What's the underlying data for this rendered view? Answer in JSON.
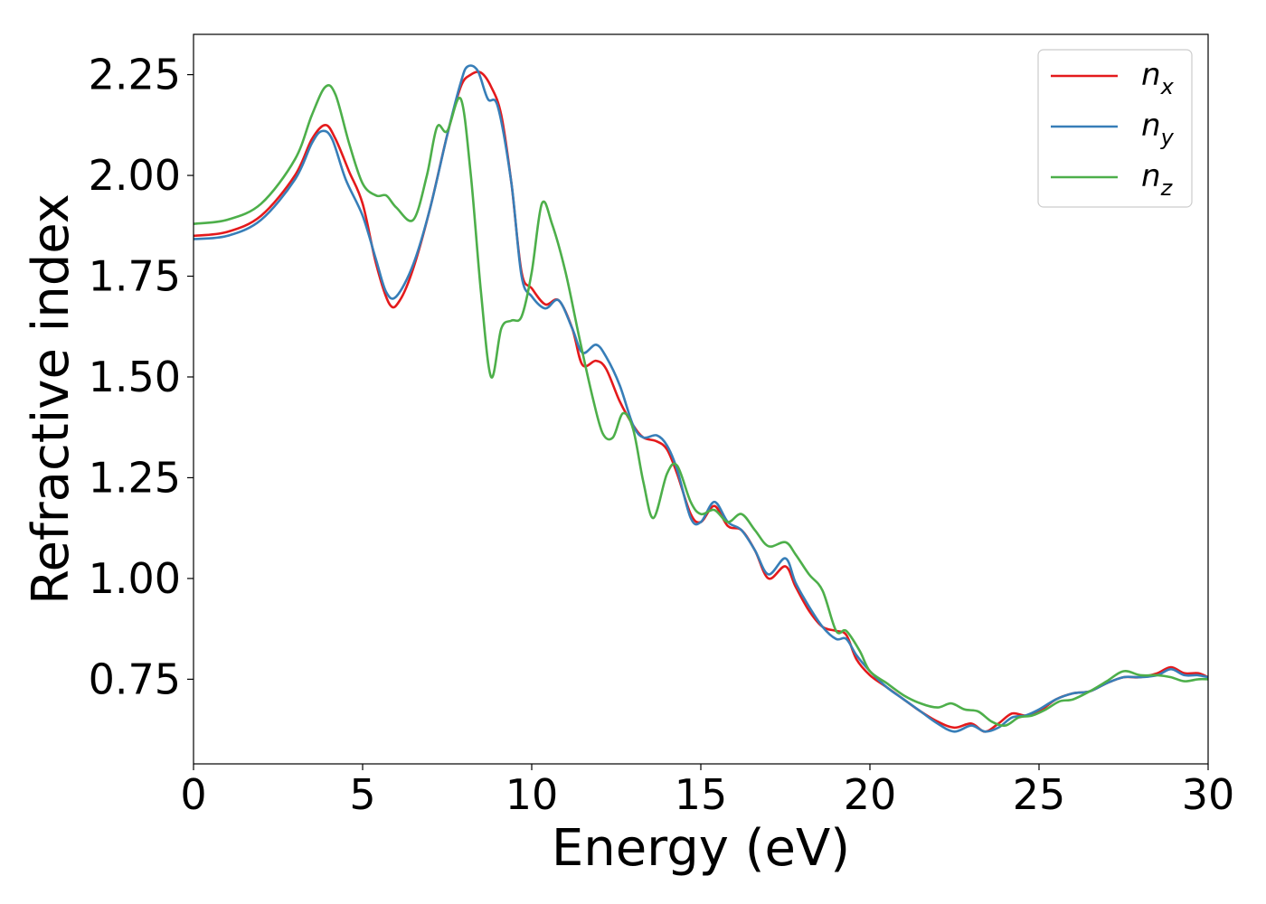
{
  "chart_data": {
    "type": "line",
    "xlabel": "Energy (eV)",
    "ylabel": "Refractive index",
    "xlim": [
      0,
      30
    ],
    "ylim": [
      0.54,
      2.35
    ],
    "xticks": [
      "0",
      "5",
      "10",
      "15",
      "20",
      "25",
      "30"
    ],
    "yticks": [
      "0.75",
      "1.00",
      "1.25",
      "1.50",
      "1.75",
      "2.00",
      "2.25"
    ],
    "grid": false,
    "legend_position": "top-right",
    "series": [
      {
        "name": "n_x",
        "base": "n",
        "sub": "x",
        "color": "#e41a1c",
        "points": [
          [
            0,
            1.85
          ],
          [
            1,
            1.86
          ],
          [
            2,
            1.9
          ],
          [
            3,
            2.0
          ],
          [
            3.5,
            2.09
          ],
          [
            3.9,
            2.125
          ],
          [
            4.2,
            2.09
          ],
          [
            4.6,
            2.01
          ],
          [
            5.0,
            1.93
          ],
          [
            5.4,
            1.78
          ],
          [
            5.8,
            1.68
          ],
          [
            6.1,
            1.69
          ],
          [
            6.5,
            1.77
          ],
          [
            7.0,
            1.92
          ],
          [
            7.5,
            2.1
          ],
          [
            7.9,
            2.22
          ],
          [
            8.2,
            2.25
          ],
          [
            8.5,
            2.255
          ],
          [
            8.8,
            2.22
          ],
          [
            9.1,
            2.15
          ],
          [
            9.4,
            1.98
          ],
          [
            9.7,
            1.76
          ],
          [
            10.0,
            1.72
          ],
          [
            10.4,
            1.68
          ],
          [
            10.8,
            1.69
          ],
          [
            11.2,
            1.62
          ],
          [
            11.5,
            1.53
          ],
          [
            11.9,
            1.54
          ],
          [
            12.2,
            1.52
          ],
          [
            12.6,
            1.44
          ],
          [
            13.0,
            1.38
          ],
          [
            13.3,
            1.35
          ],
          [
            13.7,
            1.34
          ],
          [
            14.0,
            1.32
          ],
          [
            14.3,
            1.26
          ],
          [
            14.7,
            1.16
          ],
          [
            15.0,
            1.14
          ],
          [
            15.4,
            1.18
          ],
          [
            15.8,
            1.13
          ],
          [
            16.2,
            1.12
          ],
          [
            16.6,
            1.07
          ],
          [
            17.0,
            1.0
          ],
          [
            17.5,
            1.03
          ],
          [
            17.8,
            0.98
          ],
          [
            18.2,
            0.92
          ],
          [
            18.6,
            0.88
          ],
          [
            19.0,
            0.87
          ],
          [
            19.3,
            0.86
          ],
          [
            19.6,
            0.8
          ],
          [
            20.0,
            0.76
          ],
          [
            20.5,
            0.73
          ],
          [
            21.0,
            0.7
          ],
          [
            21.5,
            0.67
          ],
          [
            22.0,
            0.645
          ],
          [
            22.5,
            0.63
          ],
          [
            23.0,
            0.64
          ],
          [
            23.4,
            0.62
          ],
          [
            23.8,
            0.64
          ],
          [
            24.2,
            0.665
          ],
          [
            24.6,
            0.66
          ],
          [
            25.0,
            0.67
          ],
          [
            25.5,
            0.7
          ],
          [
            26.0,
            0.715
          ],
          [
            26.5,
            0.72
          ],
          [
            27.0,
            0.74
          ],
          [
            27.5,
            0.755
          ],
          [
            28.0,
            0.755
          ],
          [
            28.5,
            0.765
          ],
          [
            28.9,
            0.78
          ],
          [
            29.3,
            0.765
          ],
          [
            29.7,
            0.765
          ],
          [
            30,
            0.755
          ]
        ]
      },
      {
        "name": "n_y",
        "base": "n",
        "sub": "y",
        "color": "#377eb8",
        "points": [
          [
            0,
            1.842
          ],
          [
            1,
            1.85
          ],
          [
            2,
            1.89
          ],
          [
            3,
            1.99
          ],
          [
            3.5,
            2.08
          ],
          [
            3.8,
            2.11
          ],
          [
            4.1,
            2.09
          ],
          [
            4.5,
            1.99
          ],
          [
            5.0,
            1.9
          ],
          [
            5.4,
            1.79
          ],
          [
            5.7,
            1.71
          ],
          [
            6.0,
            1.7
          ],
          [
            6.5,
            1.78
          ],
          [
            7.0,
            1.92
          ],
          [
            7.5,
            2.1
          ],
          [
            7.9,
            2.23
          ],
          [
            8.1,
            2.27
          ],
          [
            8.4,
            2.26
          ],
          [
            8.7,
            2.19
          ],
          [
            9.0,
            2.17
          ],
          [
            9.4,
            1.98
          ],
          [
            9.7,
            1.75
          ],
          [
            10.0,
            1.7
          ],
          [
            10.4,
            1.67
          ],
          [
            10.8,
            1.69
          ],
          [
            11.2,
            1.62
          ],
          [
            11.5,
            1.56
          ],
          [
            11.9,
            1.58
          ],
          [
            12.2,
            1.55
          ],
          [
            12.6,
            1.48
          ],
          [
            13.0,
            1.38
          ],
          [
            13.3,
            1.35
          ],
          [
            13.7,
            1.355
          ],
          [
            14.0,
            1.33
          ],
          [
            14.3,
            1.27
          ],
          [
            14.7,
            1.15
          ],
          [
            15.0,
            1.14
          ],
          [
            15.4,
            1.19
          ],
          [
            15.8,
            1.14
          ],
          [
            16.2,
            1.12
          ],
          [
            16.6,
            1.07
          ],
          [
            17.0,
            1.01
          ],
          [
            17.5,
            1.05
          ],
          [
            17.8,
            0.99
          ],
          [
            18.2,
            0.93
          ],
          [
            18.6,
            0.88
          ],
          [
            19.0,
            0.85
          ],
          [
            19.3,
            0.85
          ],
          [
            19.6,
            0.81
          ],
          [
            20.0,
            0.77
          ],
          [
            20.5,
            0.73
          ],
          [
            21.0,
            0.7
          ],
          [
            21.5,
            0.67
          ],
          [
            22.0,
            0.64
          ],
          [
            22.5,
            0.62
          ],
          [
            23.0,
            0.635
          ],
          [
            23.4,
            0.62
          ],
          [
            23.8,
            0.63
          ],
          [
            24.2,
            0.655
          ],
          [
            24.6,
            0.66
          ],
          [
            25.0,
            0.675
          ],
          [
            25.5,
            0.7
          ],
          [
            26.0,
            0.715
          ],
          [
            26.5,
            0.72
          ],
          [
            27.0,
            0.74
          ],
          [
            27.5,
            0.755
          ],
          [
            28.0,
            0.755
          ],
          [
            28.5,
            0.76
          ],
          [
            28.9,
            0.775
          ],
          [
            29.3,
            0.76
          ],
          [
            29.7,
            0.76
          ],
          [
            30,
            0.755
          ]
        ]
      },
      {
        "name": "n_z",
        "base": "n",
        "sub": "z",
        "color": "#4daf4a",
        "points": [
          [
            0,
            1.88
          ],
          [
            1,
            1.89
          ],
          [
            2,
            1.93
          ],
          [
            3,
            2.04
          ],
          [
            3.5,
            2.15
          ],
          [
            3.9,
            2.22
          ],
          [
            4.2,
            2.2
          ],
          [
            4.6,
            2.08
          ],
          [
            5.0,
            1.98
          ],
          [
            5.4,
            1.95
          ],
          [
            5.7,
            1.95
          ],
          [
            6.0,
            1.92
          ],
          [
            6.5,
            1.89
          ],
          [
            6.9,
            2.0
          ],
          [
            7.2,
            2.12
          ],
          [
            7.5,
            2.11
          ],
          [
            7.9,
            2.19
          ],
          [
            8.2,
            2.0
          ],
          [
            8.5,
            1.71
          ],
          [
            8.8,
            1.5
          ],
          [
            9.1,
            1.62
          ],
          [
            9.4,
            1.64
          ],
          [
            9.7,
            1.65
          ],
          [
            10.0,
            1.76
          ],
          [
            10.3,
            1.93
          ],
          [
            10.6,
            1.88
          ],
          [
            11.0,
            1.76
          ],
          [
            11.4,
            1.6
          ],
          [
            11.8,
            1.45
          ],
          [
            12.1,
            1.36
          ],
          [
            12.4,
            1.35
          ],
          [
            12.7,
            1.41
          ],
          [
            13.0,
            1.37
          ],
          [
            13.3,
            1.24
          ],
          [
            13.6,
            1.15
          ],
          [
            14.0,
            1.26
          ],
          [
            14.3,
            1.28
          ],
          [
            14.7,
            1.19
          ],
          [
            15.0,
            1.16
          ],
          [
            15.4,
            1.17
          ],
          [
            15.8,
            1.14
          ],
          [
            16.2,
            1.16
          ],
          [
            16.6,
            1.12
          ],
          [
            17.0,
            1.08
          ],
          [
            17.5,
            1.09
          ],
          [
            17.8,
            1.06
          ],
          [
            18.2,
            1.01
          ],
          [
            18.6,
            0.97
          ],
          [
            19.0,
            0.87
          ],
          [
            19.3,
            0.87
          ],
          [
            19.7,
            0.82
          ],
          [
            20.0,
            0.77
          ],
          [
            20.5,
            0.74
          ],
          [
            21.0,
            0.71
          ],
          [
            21.5,
            0.69
          ],
          [
            22.0,
            0.68
          ],
          [
            22.4,
            0.69
          ],
          [
            22.8,
            0.675
          ],
          [
            23.2,
            0.67
          ],
          [
            23.6,
            0.645
          ],
          [
            24.0,
            0.635
          ],
          [
            24.4,
            0.655
          ],
          [
            24.8,
            0.66
          ],
          [
            25.2,
            0.675
          ],
          [
            25.6,
            0.695
          ],
          [
            26.0,
            0.7
          ],
          [
            26.5,
            0.72
          ],
          [
            27.0,
            0.745
          ],
          [
            27.5,
            0.77
          ],
          [
            28.0,
            0.76
          ],
          [
            28.5,
            0.76
          ],
          [
            28.9,
            0.755
          ],
          [
            29.3,
            0.745
          ],
          [
            29.7,
            0.75
          ],
          [
            30,
            0.75
          ]
        ]
      }
    ]
  }
}
